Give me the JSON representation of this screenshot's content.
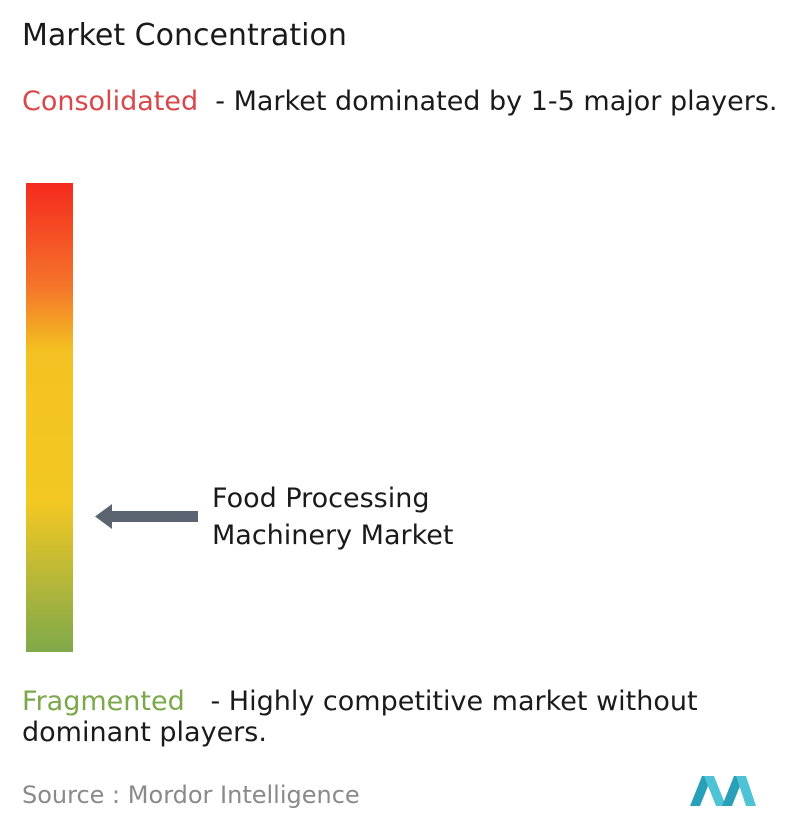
{
  "title": "Market Concentration",
  "consolidated": {
    "label": "Consolidated",
    "description": "- Market dominated by 1-5 major players."
  },
  "marker": {
    "label": "Food Processing Machinery Market"
  },
  "fragmented": {
    "label": "Fragmented",
    "description": "- Highly competitive market without dominant players."
  },
  "source": {
    "prefix": "Source :",
    "name": "Mordor Intelligence"
  }
}
